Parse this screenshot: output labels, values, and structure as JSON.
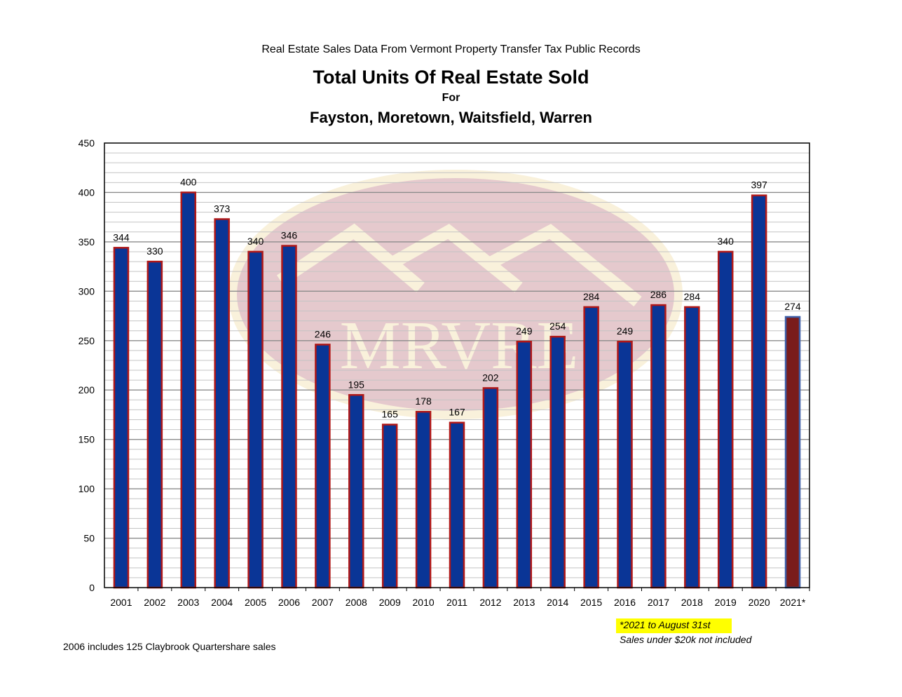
{
  "header": {
    "supertitle": "Real Estate Sales Data From Vermont Property Transfer Tax Public Records",
    "title": "Total Units Of Real Estate Sold",
    "for_label": "For",
    "subtitle": "Fayston, Moretown, Waitsfield, Warren"
  },
  "watermark": {
    "text": "MRVRE"
  },
  "notes": {
    "highlight_note": "*2021 to August 31st",
    "exclusion_note": "Sales under $20k not included",
    "footnote": "2006 includes 125 Claybrook Quartershare sales"
  },
  "chart_data": {
    "type": "bar",
    "categories": [
      "2001",
      "2002",
      "2003",
      "2004",
      "2005",
      "2006",
      "2007",
      "2008",
      "2009",
      "2010",
      "2011",
      "2012",
      "2013",
      "2014",
      "2015",
      "2016",
      "2017",
      "2018",
      "2019",
      "2020",
      "2021*"
    ],
    "values": [
      344,
      330,
      400,
      373,
      340,
      346,
      246,
      195,
      165,
      178,
      167,
      202,
      249,
      254,
      284,
      249,
      286,
      284,
      340,
      397,
      274
    ],
    "data_labels": [
      "344",
      "330",
      "400",
      "373",
      "340",
      "346",
      "246",
      "195",
      "165",
      "178",
      "167",
      "202",
      "249",
      "254",
      "284",
      "249",
      "286",
      "284",
      "340",
      "397",
      "274"
    ],
    "y_ticks": [
      "0",
      "50",
      "100",
      "150",
      "200",
      "250",
      "300",
      "350",
      "400",
      "450"
    ],
    "ylim": [
      0,
      450
    ],
    "minor_grid_step": 10,
    "major_grid_step": 50,
    "grid": true,
    "legend": false,
    "colors": {
      "bar_fill": "#0a3596",
      "bar_edge": "#b01818",
      "highlight_fill": "#7a1c1c",
      "highlight_edge": "#3d5ea8",
      "highlight_note_bg": "#ffff00"
    }
  }
}
